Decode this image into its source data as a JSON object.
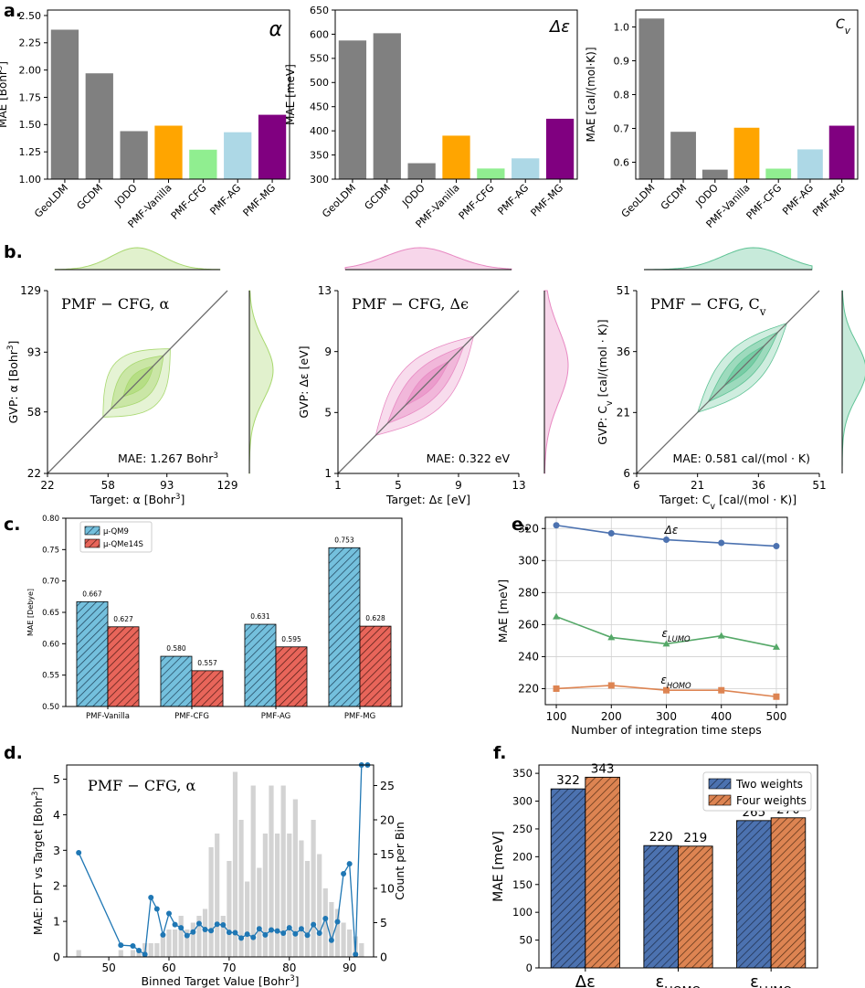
{
  "panel_labels": {
    "a": "a.",
    "b": "b.",
    "c": "c.",
    "d": "d.",
    "e": "e.",
    "f": "f."
  },
  "colors": {
    "gray": "#808080",
    "orange": "#ffa500",
    "lightgreen": "#90ee90",
    "lightblue": "#add8e6",
    "purple": "#800080",
    "alpha_kde": "#a8d86f",
    "gap_kde": "#e88ac3",
    "cv_kde": "#5fc395",
    "c_series1": "#74c0dd",
    "c_series2": "#e8655a",
    "e_gap": "#4c72b0",
    "e_lumo": "#55a868",
    "e_homo": "#dd8452",
    "f_series1": "#4c72b0",
    "f_series2": "#dd8452",
    "d_line": "#1f77b4",
    "d_hist": "#d3d3d3"
  },
  "chart_data": [
    {
      "id": "a1",
      "type": "bar",
      "title": "α",
      "ylabel": "MAE [Bohr³]",
      "categories": [
        "GeoLDM",
        "GCDM",
        "JODO",
        "PMF-Vanilla",
        "PMF-CFG",
        "PMF-AG",
        "PMF-MG"
      ],
      "values": [
        2.37,
        1.97,
        1.44,
        1.49,
        1.27,
        1.43,
        1.59
      ],
      "ylim": [
        1.0,
        2.55
      ],
      "yticks": [
        "1.00",
        "1.25",
        "1.50",
        "1.75",
        "2.00",
        "2.25",
        "2.50"
      ]
    },
    {
      "id": "a2",
      "type": "bar",
      "title": "Δε",
      "ylabel": "MAE [meV]",
      "categories": [
        "GeoLDM",
        "GCDM",
        "JODO",
        "PMF-Vanilla",
        "PMF-CFG",
        "PMF-AG",
        "PMF-MG"
      ],
      "values": [
        587,
        602,
        333,
        390,
        322,
        343,
        425
      ],
      "ylim": [
        300,
        650
      ],
      "yticks": [
        "300",
        "350",
        "400",
        "450",
        "500",
        "550",
        "600",
        "650"
      ]
    },
    {
      "id": "a3",
      "type": "bar",
      "title": "C_v",
      "ylabel": "MAE [cal/(mol·K)]",
      "categories": [
        "GeoLDM",
        "GCDM",
        "JODO",
        "PMF-Vanilla",
        "PMF-CFG",
        "PMF-AG",
        "PMF-MG"
      ],
      "values": [
        1.025,
        0.69,
        0.578,
        0.702,
        0.581,
        0.638,
        0.708
      ],
      "ylim": [
        0.55,
        1.05
      ],
      "yticks": [
        "0.6",
        "0.7",
        "0.8",
        "0.9",
        "1.0"
      ]
    },
    {
      "id": "b1",
      "type": "scatter",
      "title": "PMF − CFG, α",
      "xlabel": "Target: α [Bohr³]",
      "ylabel": "GVP: α [Bohr³]",
      "xlim": [
        22,
        129
      ],
      "ylim": [
        22,
        129
      ],
      "xticks": [
        "22",
        "58",
        "93",
        "129"
      ],
      "yticks": [
        "22",
        "58",
        "93",
        "129"
      ],
      "annotation": "MAE: 1.267 Bohr³",
      "density_center": [
        75,
        75
      ],
      "density_extent": [
        55,
        95
      ]
    },
    {
      "id": "b2",
      "type": "scatter",
      "title": "PMF − CFG, Δϵ",
      "xlabel": "Target: Δε [eV]",
      "ylabel": "GVP: Δε [eV]",
      "xlim": [
        1,
        13
      ],
      "ylim": [
        1,
        13
      ],
      "xticks": [
        "1",
        "5",
        "9",
        "13"
      ],
      "yticks": [
        "1",
        "5",
        "9",
        "13"
      ],
      "annotation": "MAE: 0.322 eV",
      "density_center": [
        7,
        7
      ],
      "density_extent": [
        3.5,
        10
      ]
    },
    {
      "id": "b3",
      "type": "scatter",
      "title": "PMF − CFG, C_v",
      "xlabel": "Target: C_v [cal/(mol · K)]",
      "ylabel": "GVP: C_v [cal/(mol · K)]",
      "xlim": [
        6,
        51
      ],
      "ylim": [
        6,
        51
      ],
      "xticks": [
        "6",
        "21",
        "36",
        "51"
      ],
      "yticks": [
        "6",
        "21",
        "36",
        "51"
      ],
      "annotation": "MAE: 0.581 cal/(mol · K)",
      "density_center": [
        32,
        32
      ],
      "density_extent": [
        21,
        43
      ]
    },
    {
      "id": "c",
      "type": "bar",
      "ylabel": "MAE [Debye]",
      "categories": [
        "PMF-Vanilla",
        "PMF-CFG",
        "PMF-AG",
        "PMF-MG"
      ],
      "series": [
        {
          "name": "μ-QM9",
          "values": [
            0.667,
            0.58,
            0.631,
            0.753
          ],
          "labels": [
            "0.667",
            "0.580",
            "0.631",
            "0.753"
          ]
        },
        {
          "name": "μ-QMe14S",
          "values": [
            0.627,
            0.557,
            0.595,
            0.628
          ],
          "labels": [
            "0.627",
            "0.557",
            "0.595",
            "0.628"
          ]
        }
      ],
      "ylim": [
        0.5,
        0.8
      ],
      "yticks": [
        "0.50",
        "0.55",
        "0.60",
        "0.65",
        "0.70",
        "0.75",
        "0.80"
      ],
      "legend": "top-left"
    },
    {
      "id": "e",
      "type": "line",
      "xlabel": "Number of integration time steps",
      "ylabel": "MAE [meV]",
      "x": [
        100,
        200,
        300,
        400,
        500
      ],
      "series": [
        {
          "name": "Δε",
          "values": [
            322,
            317,
            313,
            311,
            309
          ],
          "marker": "circle"
        },
        {
          "name": "ε_LUMO",
          "values": [
            265,
            252,
            248,
            253,
            246
          ],
          "marker": "triangle"
        },
        {
          "name": "ε_HOMO",
          "values": [
            220,
            222,
            219,
            219,
            215
          ],
          "marker": "square"
        }
      ],
      "xlim": [
        80,
        520
      ],
      "ylim": [
        210,
        327
      ],
      "xticks": [
        "100",
        "200",
        "300",
        "400",
        "500"
      ],
      "yticks": [
        "220",
        "240",
        "260",
        "280",
        "300",
        "320"
      ],
      "grid": true
    },
    {
      "id": "d",
      "type": "line+bar",
      "title": "PMF − CFG, α",
      "xlabel": "Binned Target Value [Bohr³]",
      "ylabel": "MAE: DFT vs Target [Bohr³]",
      "ylabel_right": "Count per Bin",
      "line_x": [
        45,
        52,
        54,
        55,
        56,
        57,
        58,
        59,
        60,
        61,
        62,
        63,
        64,
        65,
        66,
        67,
        68,
        69,
        70,
        71,
        72,
        73,
        74,
        75,
        76,
        77,
        78,
        79,
        80,
        81,
        82,
        83,
        84,
        85,
        86,
        87,
        88,
        89,
        90,
        91,
        92,
        93
      ],
      "line_y": [
        2.93,
        0.33,
        0.31,
        0.18,
        0.07,
        1.67,
        1.35,
        0.62,
        1.22,
        0.91,
        0.82,
        0.6,
        0.7,
        0.94,
        0.77,
        0.74,
        0.92,
        0.9,
        0.69,
        0.68,
        0.53,
        0.64,
        0.55,
        0.79,
        0.62,
        0.76,
        0.73,
        0.67,
        0.82,
        0.65,
        0.79,
        0.61,
        0.91,
        0.67,
        1.08,
        0.47,
        0.99,
        2.34,
        2.62,
        0.07,
        6.69,
        6.69
      ],
      "bar_x": [
        45,
        52,
        54,
        55,
        56,
        57,
        58,
        59,
        60,
        61,
        62,
        63,
        64,
        65,
        66,
        67,
        68,
        69,
        70,
        71,
        72,
        73,
        74,
        75,
        76,
        77,
        78,
        79,
        80,
        81,
        82,
        83,
        84,
        85,
        86,
        87,
        88,
        89,
        90,
        91,
        92
      ],
      "bar_counts": [
        1,
        1,
        1,
        1,
        2,
        2,
        2,
        3,
        4,
        4,
        6,
        4,
        5,
        6,
        7,
        16,
        18,
        6,
        14,
        27,
        20,
        11,
        25,
        13,
        18,
        25,
        18,
        25,
        18,
        23,
        17,
        14,
        20,
        15,
        10,
        8,
        7,
        5,
        4,
        3,
        2
      ],
      "xlim": [
        43,
        94
      ],
      "ylim": [
        0,
        5.4
      ],
      "ylim_right": [
        0,
        28
      ],
      "xticks": [
        "50",
        "60",
        "70",
        "80",
        "90"
      ],
      "yticks": [
        "0",
        "1",
        "2",
        "3",
        "4",
        "5"
      ],
      "yticks_right": [
        "0",
        "5",
        "10",
        "15",
        "20",
        "25"
      ]
    },
    {
      "id": "f",
      "type": "bar",
      "ylabel": "MAE [meV]",
      "categories": [
        "Δε",
        "ε_HOMO",
        "ε_LUMO"
      ],
      "series": [
        {
          "name": "Two weights",
          "values": [
            322,
            220,
            265
          ],
          "labels": [
            "322",
            "220",
            "265"
          ]
        },
        {
          "name": "Four weights",
          "values": [
            343,
            219,
            270
          ],
          "labels": [
            "343",
            "219",
            "270"
          ]
        }
      ],
      "ylim": [
        0,
        365
      ],
      "yticks": [
        "0",
        "50",
        "100",
        "150",
        "200",
        "250",
        "300",
        "350"
      ],
      "legend": "top-right"
    }
  ]
}
